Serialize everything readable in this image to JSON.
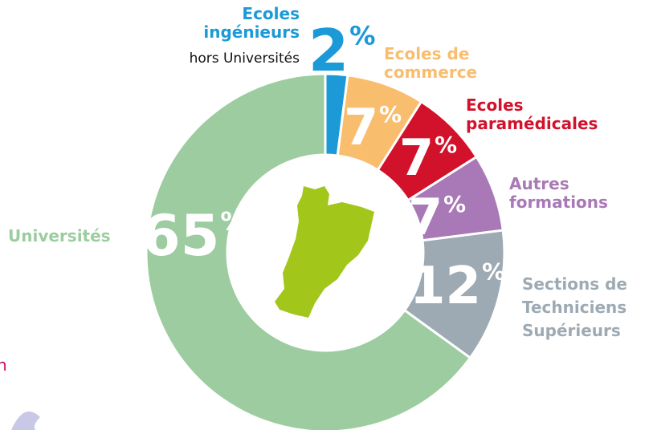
{
  "chart_data": {
    "type": "pie",
    "categories": [
      "Ecoles ingénieurs",
      "Ecoles de commerce",
      "Ecoles paramédicales",
      "Autres formations",
      "Sections de Techniciens Supérieurs",
      "Universités"
    ],
    "values": [
      2,
      7,
      7,
      7,
      12,
      65
    ],
    "unit": "%",
    "colors": [
      "#1b9ad7",
      "#f9bd6e",
      "#d2112b",
      "#a978b6",
      "#9eaab3",
      "#9ccc9f"
    ],
    "annotations": [
      "hors Universités",
      "n"
    ]
  }
}
